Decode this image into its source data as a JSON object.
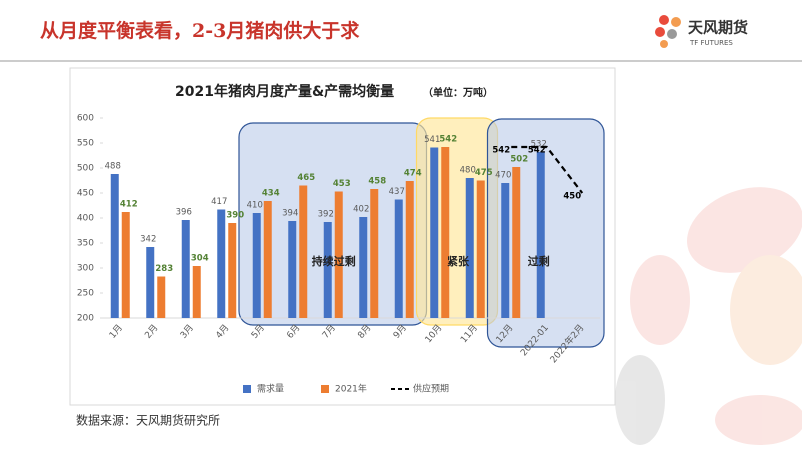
{
  "header": {
    "title": "从月度平衡表看，2-3月猪肉供大于求",
    "logo_name": "天风期货",
    "logo_sub": "TF FUTURES"
  },
  "chart_data": {
    "type": "bar",
    "title": "2021年猪肉月度产量&产需均衡量",
    "subtitle": "（单位：万吨）",
    "categories": [
      "1月",
      "2月",
      "3月",
      "4月",
      "5月",
      "6月",
      "7月",
      "8月",
      "9月",
      "10月",
      "11月",
      "12月",
      "2022-01",
      "2022年2月"
    ],
    "series": [
      {
        "name": "需求量",
        "color": "#4472c4",
        "values": [
          488,
          342,
          396,
          417,
          410,
          394,
          392,
          402,
          437,
          541,
          480,
          470,
          532,
          null
        ]
      },
      {
        "name": "2021年",
        "color": "#ed7d31",
        "values": [
          412,
          283,
          304,
          390,
          434,
          465,
          453,
          458,
          474,
          542,
          475,
          502,
          null,
          null
        ]
      },
      {
        "name": "供应预期",
        "color": "#000000",
        "type": "line",
        "dashed": true,
        "values": [
          null,
          null,
          null,
          null,
          null,
          null,
          null,
          null,
          null,
          null,
          null,
          542,
          542,
          450
        ]
      }
    ],
    "ylim": [
      200,
      600
    ],
    "yticks": [
      200,
      250,
      300,
      350,
      400,
      450,
      500,
      550,
      600
    ],
    "grid": false,
    "annotations": [
      "持续过剩",
      "紧张",
      "过剩"
    ],
    "legend": "bottom"
  },
  "source": "数据来源：天风期货研究所"
}
